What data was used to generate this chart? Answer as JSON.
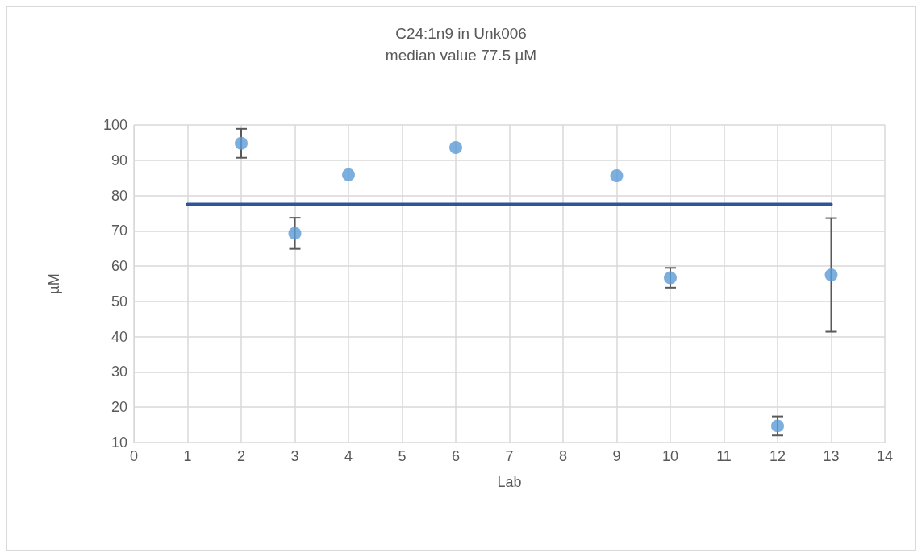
{
  "chart_data": {
    "type": "scatter",
    "title": "C24:1n9 in Unk006",
    "subtitle": "median value 77.5 µM",
    "xlabel": "Lab",
    "ylabel": "µM",
    "series": [
      {
        "color": "#5b9bd5",
        "marker": "circle",
        "x": [
          2,
          3,
          4,
          6,
          9,
          10,
          12,
          13
        ],
        "values": [
          94.8,
          69.3,
          85.9,
          93.6,
          85.6,
          56.7,
          14.7,
          57.5
        ],
        "errors": [
          4.1,
          4.4,
          null,
          null,
          null,
          2.8,
          2.7,
          16.1
        ]
      },
      {
        "type": "line",
        "marker": "none",
        "color": "#2f5597",
        "x": [
          1,
          13
        ],
        "values": [
          77.5,
          77.5
        ]
      }
    ],
    "xlim": [
      0,
      14
    ],
    "xticks": [
      0,
      1,
      2,
      3,
      4,
      5,
      6,
      7,
      8,
      9,
      10,
      11,
      12,
      13,
      14
    ],
    "ylim": [
      10,
      100
    ],
    "yticks": [
      10,
      20,
      30,
      40,
      50,
      60,
      70,
      80,
      90,
      100
    ],
    "grid": true
  }
}
